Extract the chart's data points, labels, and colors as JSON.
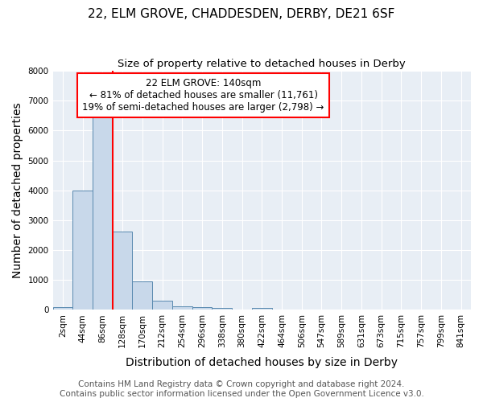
{
  "title": "22, ELM GROVE, CHADDESDEN, DERBY, DE21 6SF",
  "subtitle": "Size of property relative to detached houses in Derby",
  "xlabel": "Distribution of detached houses by size in Derby",
  "ylabel": "Number of detached properties",
  "footer_line1": "Contains HM Land Registry data © Crown copyright and database right 2024.",
  "footer_line2": "Contains public sector information licensed under the Open Government Licence v3.0.",
  "bar_labels": [
    "2sqm",
    "44sqm",
    "86sqm",
    "128sqm",
    "170sqm",
    "212sqm",
    "254sqm",
    "296sqm",
    "338sqm",
    "380sqm",
    "422sqm",
    "464sqm",
    "506sqm",
    "547sqm",
    "589sqm",
    "631sqm",
    "673sqm",
    "715sqm",
    "757sqm",
    "799sqm",
    "841sqm"
  ],
  "bar_values": [
    80,
    4000,
    6600,
    2620,
    960,
    320,
    130,
    100,
    60,
    0,
    60,
    0,
    0,
    0,
    0,
    0,
    0,
    0,
    0,
    0,
    0
  ],
  "bar_color": "#c8d8ea",
  "bar_edge_color": "#5a8ab0",
  "property_line_color": "red",
  "property_line_bar_index": 2.5,
  "annotation_text": "22 ELM GROVE: 140sqm\n← 81% of detached houses are smaller (11,761)\n19% of semi-detached houses are larger (2,798) →",
  "annotation_box_color": "white",
  "annotation_box_edge_color": "red",
  "ylim": [
    0,
    8000
  ],
  "yticks": [
    0,
    1000,
    2000,
    3000,
    4000,
    5000,
    6000,
    7000,
    8000
  ],
  "background_color": "#ffffff",
  "plot_bg_color": "#e8eef5",
  "grid_color": "#ffffff",
  "title_fontsize": 11,
  "subtitle_fontsize": 9.5,
  "axis_label_fontsize": 10,
  "tick_fontsize": 7.5,
  "annotation_fontsize": 8.5,
  "footer_fontsize": 7.5
}
